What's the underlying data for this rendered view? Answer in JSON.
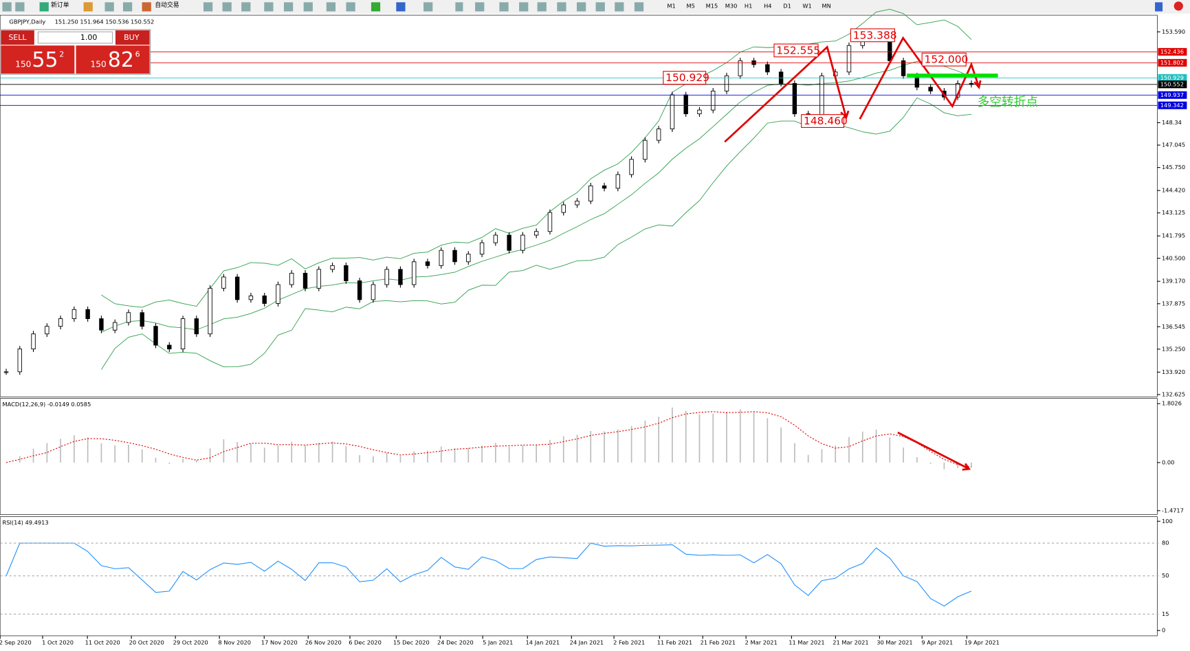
{
  "toolbar": {
    "new_order": "新订单",
    "auto_trading": "自动交易",
    "timeframes": [
      "M1",
      "M5",
      "M15",
      "M30",
      "H1",
      "H4",
      "D1",
      "W1",
      "MN"
    ]
  },
  "trade_panel": {
    "sell": "SELL",
    "buy": "BUY",
    "lots": "1.00",
    "bid": {
      "big": "150",
      "pips": "55",
      "frac": "2"
    },
    "ask": {
      "big": "150",
      "pips": "82",
      "frac": "6"
    }
  },
  "chart": {
    "header": "GBPJPY,Daily",
    "ohlc": "151.250 151.964 150.536 150.552",
    "closes": [
      133.94,
      135.26,
      136.13,
      136.57,
      137.01,
      137.54,
      137.01,
      136.35,
      136.79,
      137.36,
      136.57,
      135.48,
      135.26,
      137.01,
      136.13,
      138.77,
      139.42,
      138.11,
      138.33,
      137.89,
      138.98,
      139.64,
      138.77,
      139.86,
      140.08,
      139.2,
      138.11,
      138.98,
      139.86,
      138.98,
      140.3,
      140.08,
      140.96,
      140.3,
      140.74,
      141.4,
      141.84,
      140.96,
      141.84,
      142.05,
      143.15,
      143.59,
      143.81,
      144.69,
      144.55,
      145.34,
      146.22,
      147.32,
      147.98,
      149.95,
      148.85,
      149.07,
      150.17,
      151.05,
      151.92,
      151.7,
      151.27,
      150.61,
      148.85,
      148.46,
      151.05,
      151.27,
      152.8,
      153.24,
      153.388,
      151.92,
      151.05,
      150.39,
      150.17,
      149.82,
      150.61,
      150.552
    ],
    "yticks": [
      {
        "value": 153.59,
        "label": "153.590"
      },
      148.34,
      147.045,
      {
        "value": 145.75,
        "label": "145.750"
      },
      {
        "value": 144.42,
        "label": "144.420"
      },
      143.125,
      141.795,
      {
        "value": 140.5,
        "label": "140.500"
      },
      {
        "value": 139.17,
        "label": "139.170"
      },
      137.875,
      136.545,
      {
        "value": 135.25,
        "label": "135.250"
      },
      {
        "value": 133.92,
        "label": "133.920"
      },
      132.625
    ],
    "levels": [
      {
        "value": 152.436,
        "color": "#e00000"
      },
      {
        "value": 151.802,
        "color": "#e00000"
      },
      {
        "value": 150.929,
        "color": "#20c0c0"
      },
      {
        "value": 150.552,
        "color": "#000000"
      },
      {
        "value": 149.937,
        "color": "#0000e0"
      },
      {
        "value": 149.342,
        "color": "#0000e0"
      }
    ],
    "annotations": [
      "152.555",
      "153.388",
      "152.000",
      "150.929",
      "148.460"
    ],
    "turning_point": "多空转折点",
    "dates": [
      "2 Sep 2020",
      "1 Oct 2020",
      "11 Oct 2020",
      "20 Oct 2020",
      "29 Oct 2020",
      "8 Nov 2020",
      "17 Nov 2020",
      "26 Nov 2020",
      "6 Dec 2020",
      "15 Dec 2020",
      "24 Dec 2020",
      "5 Jan 2021",
      "14 Jan 2021",
      "24 Jan 2021",
      "2 Feb 2021",
      "11 Feb 2021",
      "21 Feb 2021",
      "2 Mar 2021",
      "11 Mar 2021",
      "21 Mar 2021",
      "30 Mar 2021",
      "9 Apr 2021",
      "19 Apr 2021"
    ]
  },
  "macd": {
    "label": "MACD(12,26,9) -0.0149 0.0585",
    "yticks": [
      1.8026,
      {
        "value": 0,
        "label": "0.00"
      },
      -1.4717
    ]
  },
  "rsi": {
    "label": "RSI(14) 49.4913",
    "yticks": [
      100,
      80,
      50,
      15,
      0
    ]
  }
}
